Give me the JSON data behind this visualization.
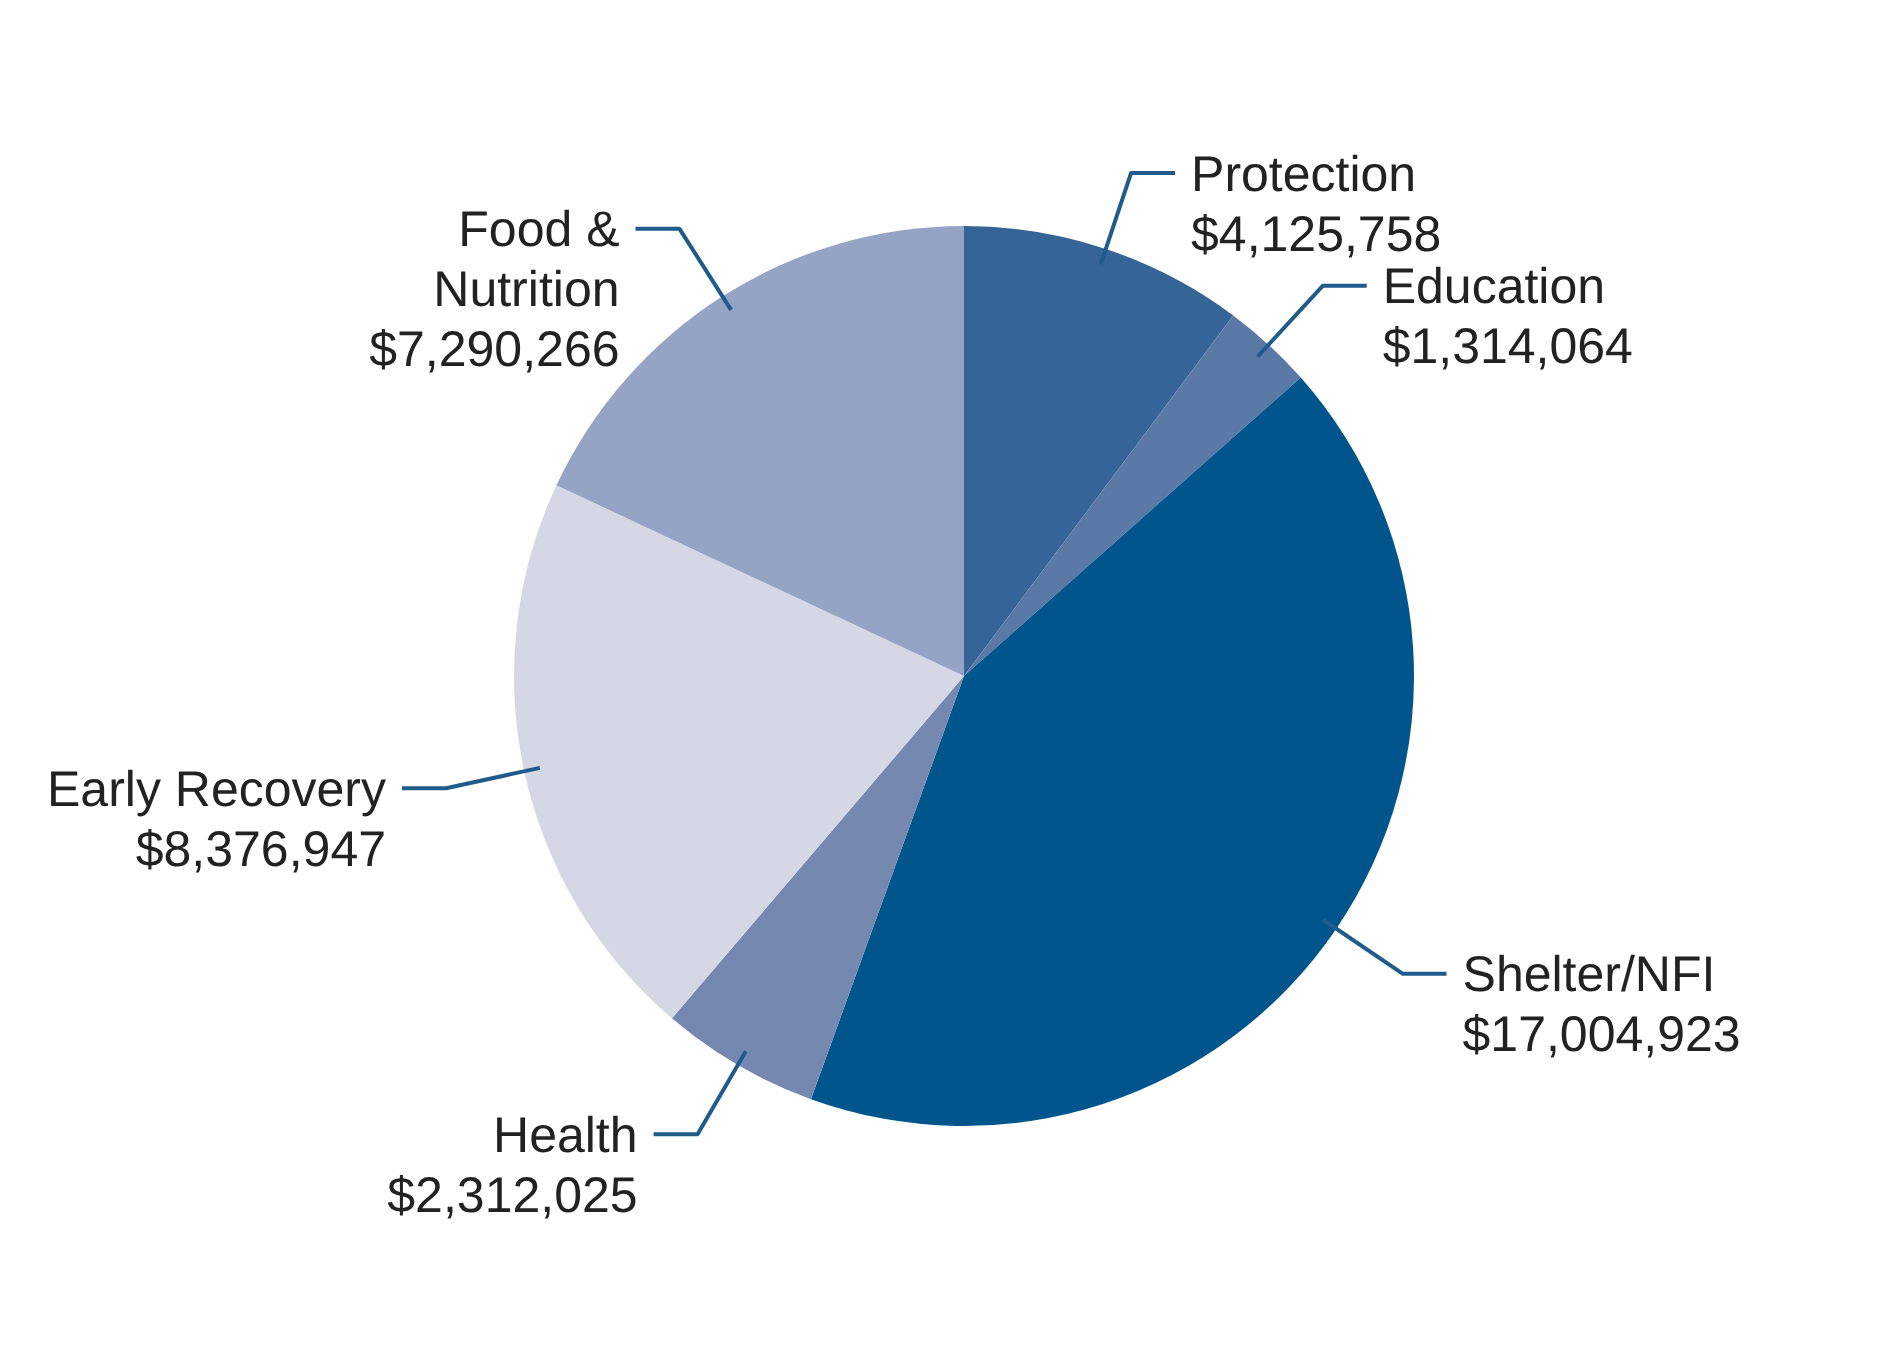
{
  "chart_data": {
    "type": "pie",
    "categories": [
      "Protection",
      "Education",
      "Shelter/NFI",
      "Health",
      "Early Recovery",
      "Food & Nutrition"
    ],
    "values": [
      4125758,
      1314064,
      17004923,
      2312025,
      8376947,
      7290266
    ],
    "value_labels": [
      "$4,125,758",
      "$1,314,064",
      "$17,004,923",
      "$2,312,025",
      "$8,376,947",
      "$7,290,266"
    ],
    "colors": [
      "#356496",
      "#5b79a6",
      "#00558c",
      "#7589b0",
      "#d3d8e4",
      "#95a4c4"
    ]
  }
}
